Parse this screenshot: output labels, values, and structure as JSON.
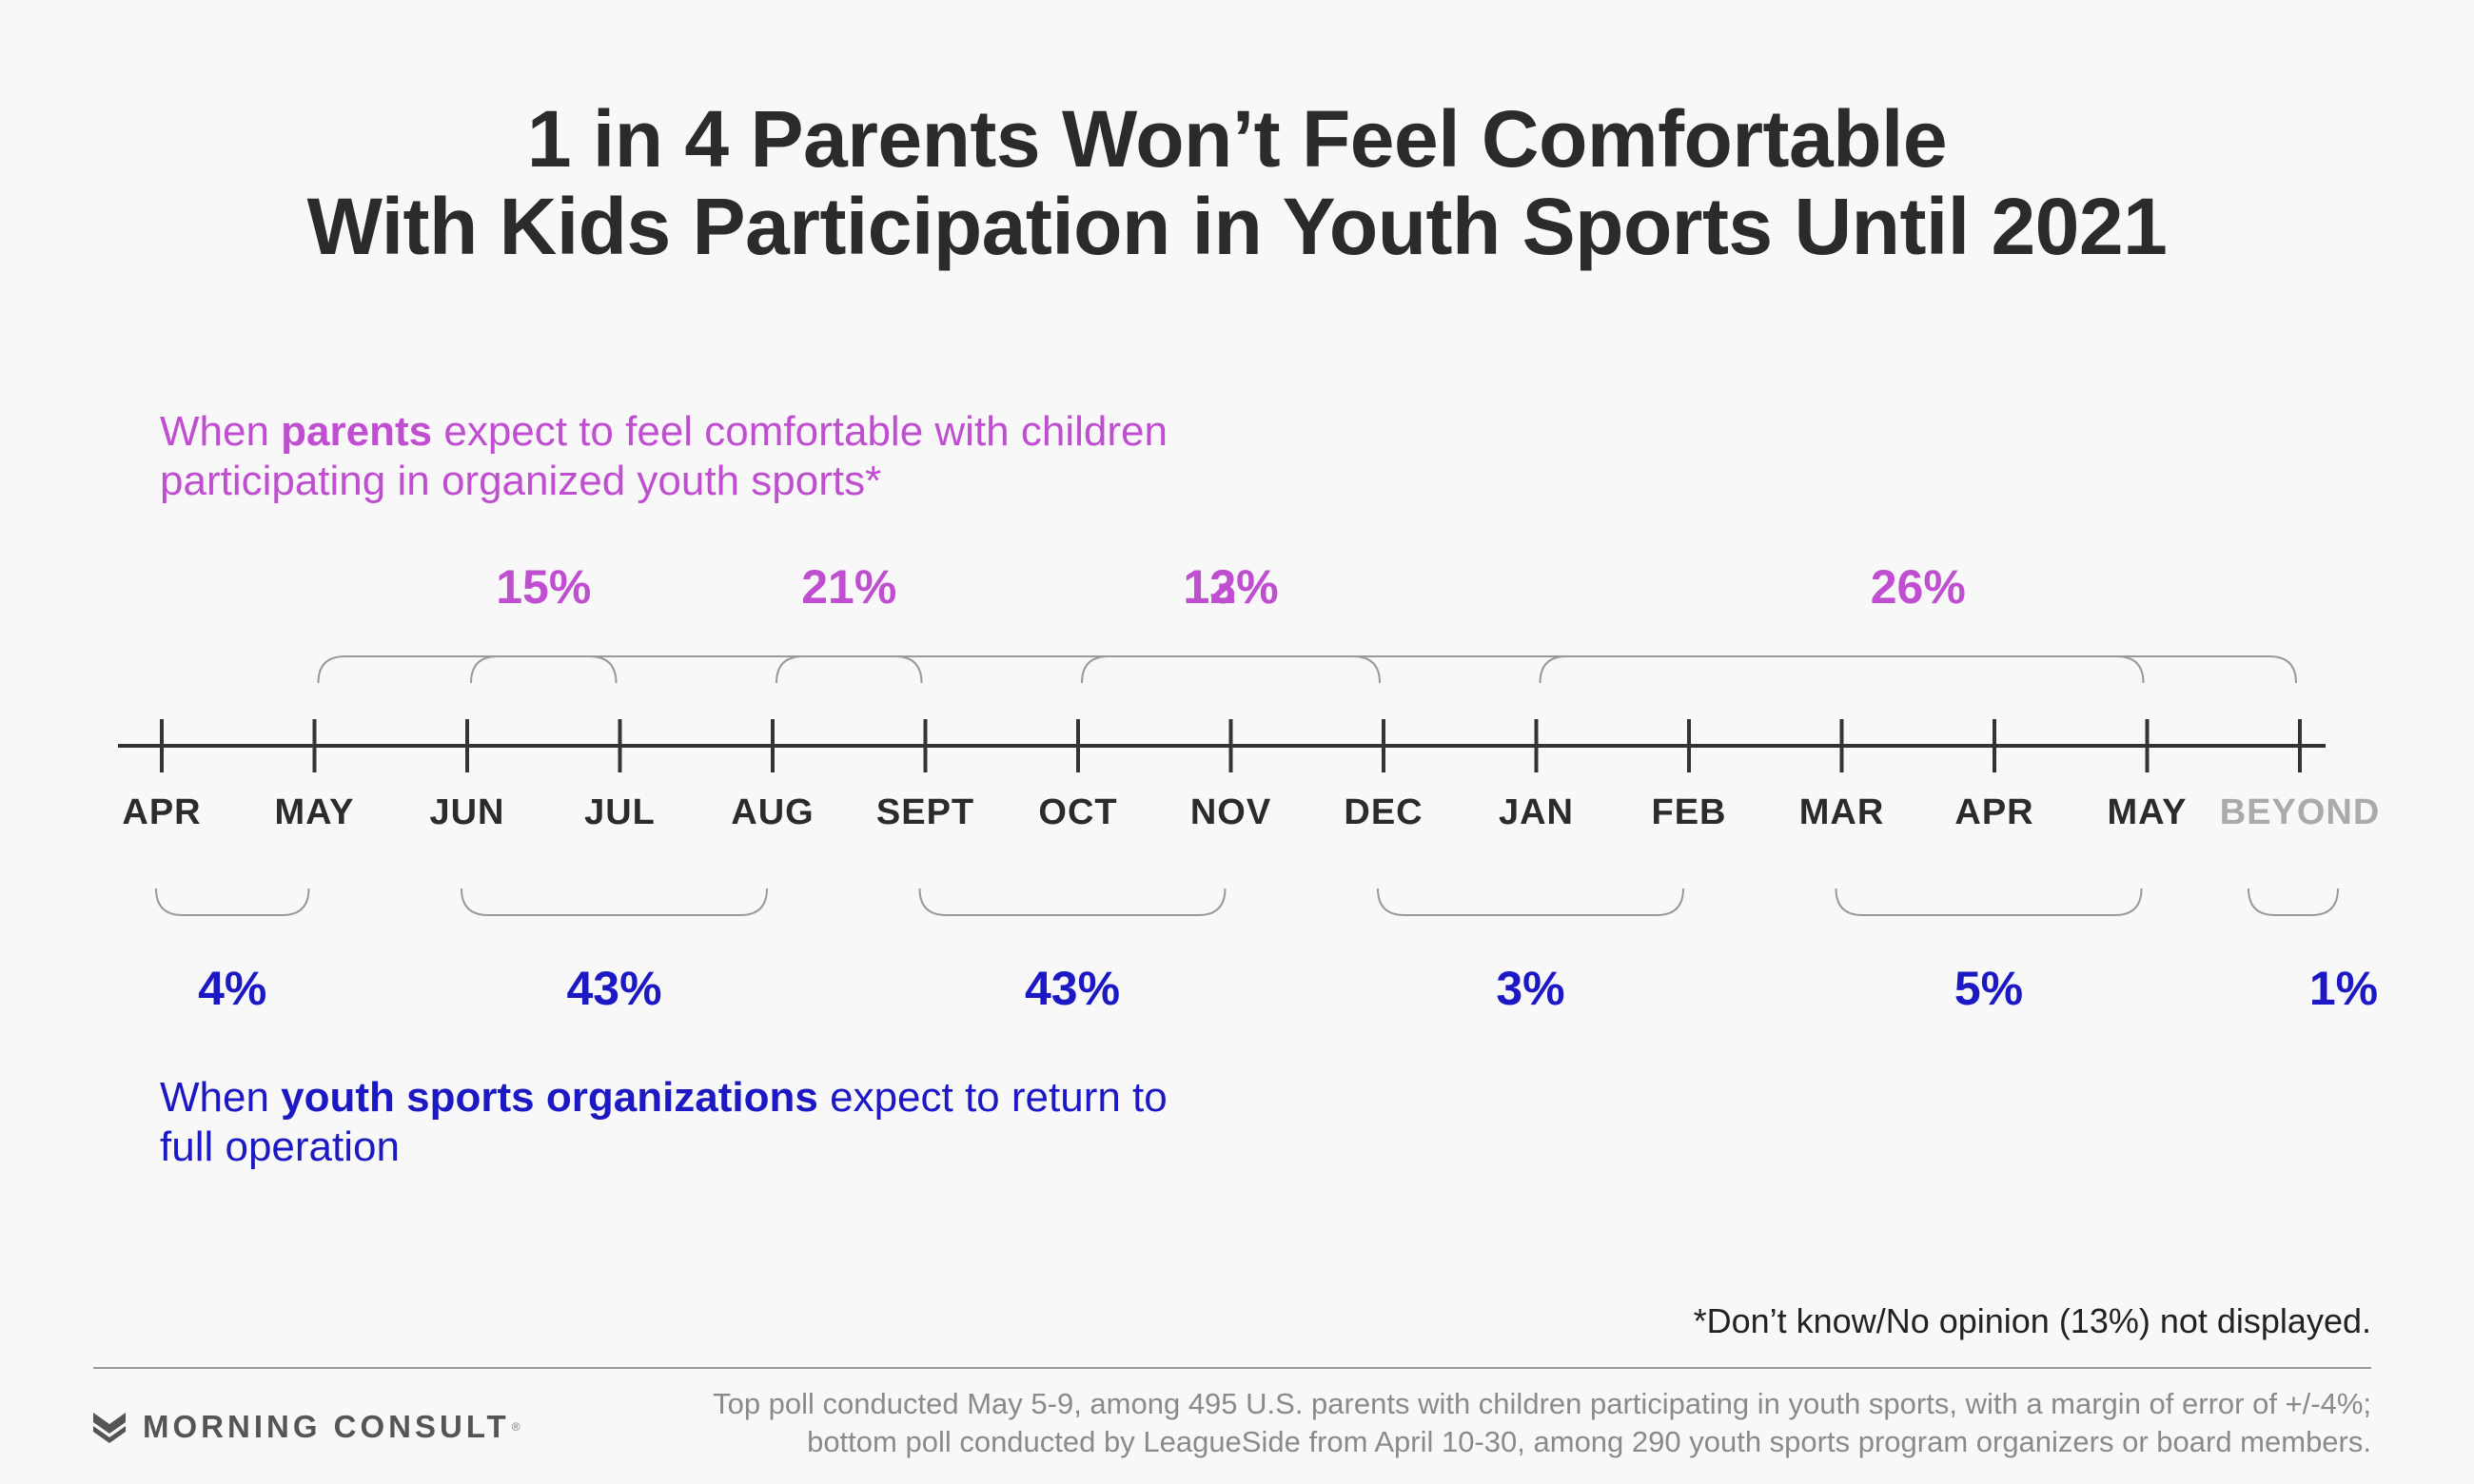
{
  "title": {
    "line1": "1 in 4 Parents Won’t Feel Comfortable",
    "line2": "With Kids Participation in Youth Sports Until 2021"
  },
  "top_caption": {
    "before": "When ",
    "bold": "parents",
    "after_line1": " expect to feel comfortable with children",
    "line2": "participating in organized youth sports*"
  },
  "bottom_caption": {
    "before": "When ",
    "bold": "youth sports organizations",
    "after_line1": " expect to return to",
    "line2": "full operation"
  },
  "footnote": "*Don’t know/No opinion (13%) not displayed.",
  "logo": {
    "text": "MORNING CONSULT",
    "registered": "®",
    "icon": "morning-consult-logo-icon"
  },
  "source": {
    "line1": "Top poll conducted May 5-9, among 495 U.S. parents with children participating in youth sports, with a margin of error of +/-4%;",
    "line2": "bottom poll conducted by LeagueSide from April 10-30, among 290 youth sports program organizers or board members."
  },
  "colors": {
    "parents": "#c04ed0",
    "organizations": "#1c18c4",
    "axis": "#333333",
    "bracket": "#999999",
    "beyond": "#aaaaaa",
    "text": "#2b2b2b"
  },
  "chart_data": {
    "type": "timeline",
    "categories": [
      "APR",
      "MAY",
      "JUN",
      "JUL",
      "AUG",
      "SEPT",
      "OCT",
      "NOV",
      "DEC",
      "JAN",
      "FEB",
      "MAR",
      "APR",
      "MAY",
      "BEYOND"
    ],
    "series": [
      {
        "name": "parents",
        "position": "above",
        "segments": [
          {
            "label": "12%",
            "value": 12,
            "from": "MAY",
            "to": "MAY"
          },
          {
            "label": "15%",
            "value": 15,
            "from": "JUN",
            "to": "JUL"
          },
          {
            "label": "21%",
            "value": 21,
            "from": "AUG",
            "to": "SEPT"
          },
          {
            "label": "13%",
            "value": 13,
            "from": "OCT",
            "to": "DEC"
          },
          {
            "label": "26%",
            "value": 26,
            "from": "JAN",
            "to": "BEYOND"
          }
        ]
      },
      {
        "name": "youth sports organizations",
        "position": "below",
        "segments": [
          {
            "label": "4%",
            "value": 4,
            "from": "APR",
            "to": "MAY"
          },
          {
            "label": "43%",
            "value": 43,
            "from": "JUN",
            "to": "AUG"
          },
          {
            "label": "43%",
            "value": 43,
            "from": "SEPT",
            "to": "NOV"
          },
          {
            "label": "3%",
            "value": 3,
            "from": "DEC",
            "to": "FEB"
          },
          {
            "label": "5%",
            "value": 5,
            "from": "MAR",
            "to": "MAY"
          },
          {
            "label": "1%",
            "value": 1,
            "from": "BEYOND",
            "to": "BEYOND"
          }
        ]
      }
    ]
  }
}
